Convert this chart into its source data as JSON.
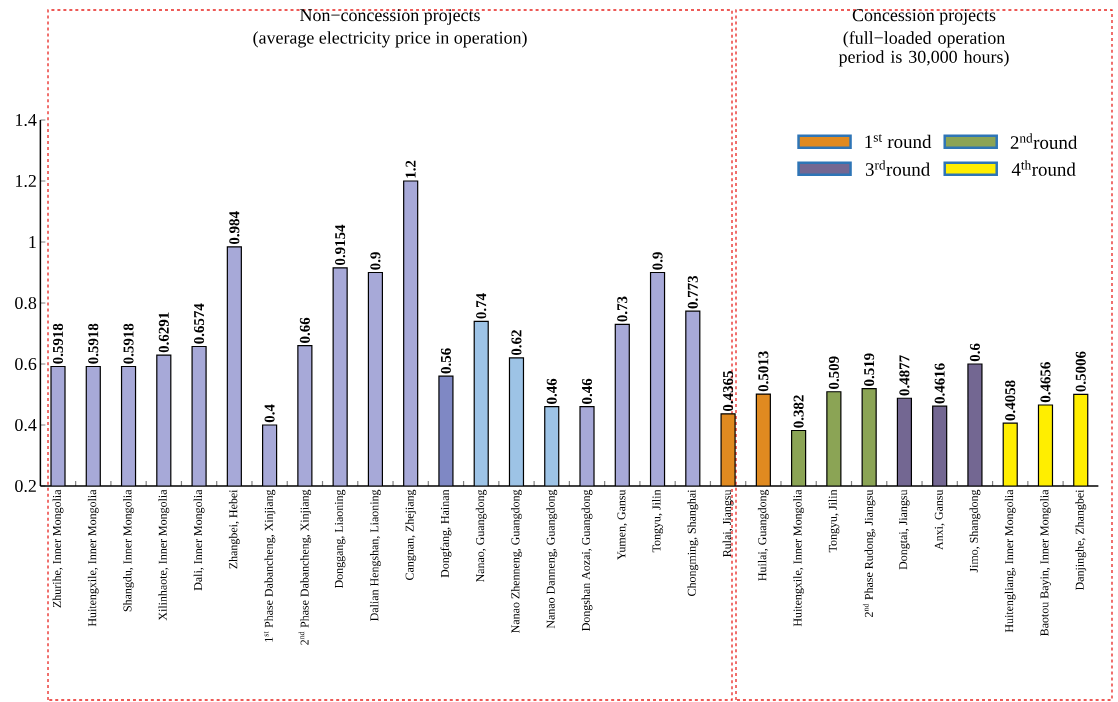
{
  "chart_data": {
    "type": "bar",
    "categories": [
      "Zhurihe, Inner Mongolia",
      "Huitengxile, Inner Mongolia",
      "Shangdu, Inner Mongolia",
      "Xilinhaote, Inner Mongolia",
      "Dali, Inner Mongolia",
      "Zhangbei, Hebei",
      "1$^{st}$ Phase Dabancheng, Xinjiang",
      "2$^{nd}$ Phase Dabancheng, Xinjiang",
      "Donggang, Liaoning",
      "Dalian Hengshan, Liaoning",
      "Cangnan, Zhejiang",
      "Dongfang, Hainan",
      "Nanao, Guangdong",
      "Nanao Zhenneng, Guangdong",
      "Nanao Danneng, Guangdong",
      "Dongshan Aozai, Guangdong",
      "Yumen, Gansu",
      "Tongyu, Jilin",
      "Chongming, Shanghai",
      "Rulai, Jiangsu",
      "Huilai, Guangdong",
      "Huitengxile, Inner Mongolia",
      "Tongyu, Jilin",
      "2$^{nd}$ Phase Rudong, Jiangsu",
      "Dongtai, Jiangsu",
      "Anxi, Gansu",
      "Jimo, Shangdong",
      "Huitengliang, Inner Mongolia",
      "Baotou Bayin, Inner Mongolia",
      "Danjinghe, Zhangbei"
    ],
    "series": [
      {
        "values": [
          0.5918,
          0.5918,
          0.5918,
          0.6291,
          0.6574,
          0.984,
          0.4,
          0.66,
          0.9154,
          0.9,
          1.2,
          0.56,
          0.74,
          0.62,
          0.46,
          0.46,
          0.73,
          0.9,
          0.773,
          null,
          null,
          null,
          null,
          null,
          null,
          null,
          null,
          null,
          null,
          null
        ],
        "colors": [
          "#a7a9d8",
          "#a7a9d8",
          "#a7a9d8",
          "#a7a9d8",
          "#a7a9d8",
          "#a7a9d8",
          "#a7a9d8",
          "#a7a9d8",
          "#a7a9d8",
          "#a7a9d8",
          "#a7a9d8",
          "#7f88c4",
          "#9dc3e6",
          "#9dc3e6",
          "#9dc3e6",
          "#a7a9d8",
          "#a7a9d8",
          "#a7a9d8",
          "#a7a9d8",
          null,
          null,
          null,
          null,
          null,
          null,
          null,
          null,
          null,
          null,
          null
        ]
      },
      {
        "name": "1$^{st}$ round",
        "color": "#e08a20",
        "values": [
          null,
          null,
          null,
          null,
          null,
          null,
          null,
          null,
          null,
          null,
          null,
          null,
          null,
          null,
          null,
          null,
          null,
          null,
          null,
          0.4365,
          0.5013,
          null,
          null,
          null,
          null,
          null,
          null,
          null,
          null,
          null
        ]
      },
      {
        "name": "2$^{nd}$round",
        "color": "#8ba455",
        "values": [
          null,
          null,
          null,
          null,
          null,
          null,
          null,
          null,
          null,
          null,
          null,
          null,
          null,
          null,
          null,
          null,
          null,
          null,
          null,
          null,
          null,
          0.382,
          0.509,
          0.519,
          null,
          null,
          null,
          null,
          null,
          null
        ]
      },
      {
        "name": "3$^{rd}$round",
        "color": "#736792",
        "values": [
          null,
          null,
          null,
          null,
          null,
          null,
          null,
          null,
          null,
          null,
          null,
          null,
          null,
          null,
          null,
          null,
          null,
          null,
          null,
          null,
          null,
          null,
          null,
          null,
          0.4877,
          0.4616,
          0.6,
          null,
          null,
          null
        ]
      },
      {
        "name": "4$^{th}$round",
        "color": "#ffee00",
        "values": [
          null,
          null,
          null,
          null,
          null,
          null,
          null,
          null,
          null,
          null,
          null,
          null,
          null,
          null,
          null,
          null,
          null,
          null,
          null,
          null,
          null,
          null,
          null,
          null,
          null,
          null,
          null,
          0.4058,
          0.4656,
          0.5006
        ]
      }
    ],
    "ylim": [
      0.2,
      1.4
    ],
    "yticks": [
      0.2,
      0.4,
      0.6,
      0.8,
      1,
      1.2,
      1.4
    ],
    "data_labels": true,
    "legend": "top right",
    "annotations": [
      "Non−concession projects",
      "(average electricity price in operation)",
      "Concession projects",
      "(full−loaded operation period is 30,000 hours)"
    ]
  }
}
